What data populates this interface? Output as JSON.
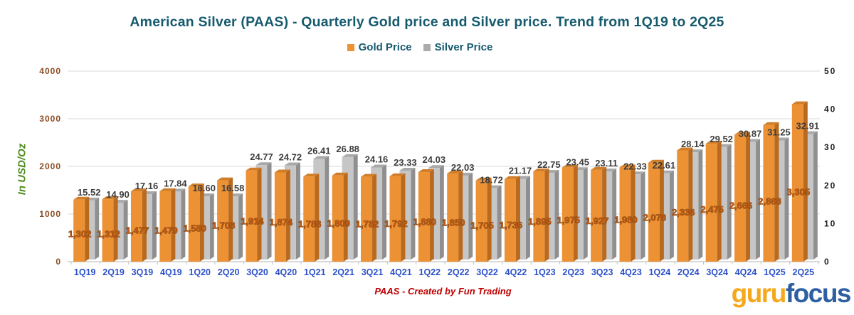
{
  "chart_data": {
    "type": "bar",
    "title": "American Silver (PAAS) - Quarterly Gold price and Silver price. Trend from 1Q19 to 2Q25",
    "legend_position": "top",
    "grid": true,
    "categories": [
      "1Q19",
      "2Q19",
      "3Q19",
      "4Q19",
      "1Q20",
      "2Q20",
      "3Q20",
      "4Q20",
      "1Q21",
      "2Q21",
      "3Q21",
      "4Q21",
      "1Q22",
      "2Q22",
      "3Q22",
      "4Q22",
      "1Q23",
      "2Q23",
      "3Q23",
      "4Q23",
      "1Q24",
      "2Q24",
      "3Q24",
      "4Q24",
      "1Q25",
      "2Q25"
    ],
    "series": [
      {
        "name": "Gold Price",
        "axis": "left",
        "unit": "USD/Oz",
        "values": [
          1302,
          1312,
          1477,
          1479,
          1580,
          1708,
          1914,
          1874,
          1788,
          1809,
          1782,
          1792,
          1880,
          1850,
          1705,
          1736,
          1895,
          1975,
          1927,
          1980,
          2078,
          2336,
          2475,
          2666,
          2868,
          3305
        ],
        "labels": [
          "1,302",
          "1,312",
          "1,477",
          "1,479",
          "1,580",
          "1,708",
          "1,914",
          "1,874",
          "1,788",
          "1,809",
          "1,782",
          "1,792",
          "1,880",
          "1,850",
          "1,705",
          "1,736",
          "1,895",
          "1,975",
          "1,927",
          "1,980",
          "2,078",
          "2,336",
          "2,475",
          "2,666",
          "2,868",
          "3,305"
        ]
      },
      {
        "name": "Silver Price",
        "axis": "right",
        "unit": "USD/Oz",
        "values": [
          15.52,
          14.9,
          17.16,
          17.84,
          16.6,
          16.58,
          24.77,
          24.72,
          26.41,
          26.88,
          24.16,
          23.33,
          24.03,
          22.03,
          18.72,
          21.17,
          22.75,
          23.45,
          23.11,
          22.33,
          22.61,
          28.14,
          29.52,
          30.87,
          31.25,
          32.91
        ],
        "labels": [
          "15.52",
          "14.90",
          "17.16",
          "17.84",
          "16.60",
          "16.58",
          "24.77",
          "24.72",
          "26.41",
          "26.88",
          "24.16",
          "23.33",
          "24.03",
          "22.03",
          "18.72",
          "21.17",
          "22.75",
          "23.45",
          "23.11",
          "22.33",
          "22.61",
          "28.14",
          "29.52",
          "30.87",
          "31.25",
          "32.91"
        ]
      }
    ],
    "left_axis": {
      "label": "In USD/Oz",
      "min": 0,
      "max": 4000,
      "ticks": [
        0,
        1000,
        2000,
        3000,
        4000
      ]
    },
    "right_axis": {
      "min": 0,
      "max": 50,
      "ticks": [
        0,
        10,
        20,
        30,
        40,
        50
      ]
    }
  },
  "legend": {
    "items": [
      {
        "label": "Gold Price",
        "color": "#EC9235"
      },
      {
        "label": "Silver Price",
        "color": "#ABABAB"
      }
    ]
  },
  "footer": {
    "text": "PAAS - Created by Fun Trading"
  },
  "logo": {
    "part1": "guru",
    "part2": "focus",
    "part1_color": "#F5A81C",
    "part2_color": "#2E5FA3"
  },
  "colors": {
    "title": "#165A6D",
    "gold_face": "#EC9235",
    "gold_side": "#B96A1E",
    "gold_top": "#D07E2A",
    "silver_face": "#C6C6C6",
    "silver_side": "#8F8F8F",
    "silver_top": "#A9A9A9",
    "gold_value_label": "#C05A12",
    "gold_value_outline": "#59300A",
    "silver_value_label": "#3D3D3D",
    "left_tick_label": "#8C4B21",
    "right_tick_label": "#1F1F1F",
    "x_label": "#2B50C9",
    "gridline": "#DADADA",
    "baseline": "#C2C2C2"
  }
}
